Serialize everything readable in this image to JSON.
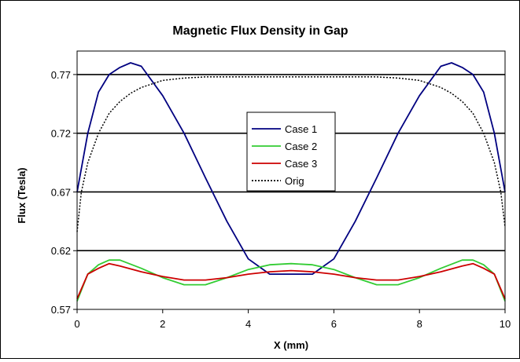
{
  "chart_data": {
    "type": "line",
    "title": "Magnetic Flux Density in Gap",
    "xlabel": "X (mm)",
    "ylabel": "Flux (Tesla)",
    "xlim": [
      0,
      10
    ],
    "ylim": [
      0.57,
      0.79
    ],
    "xticks": [
      0,
      2,
      4,
      6,
      8,
      10
    ],
    "yticks": [
      0.57,
      0.62,
      0.67,
      0.72,
      0.77
    ],
    "ytick_labels": [
      "0.57",
      "0.62",
      "0.67",
      "0.72",
      "0.77"
    ],
    "grid": "horizontal",
    "legend_position": "center",
    "series": [
      {
        "name": "Case 1",
        "color": "#000080",
        "dash": "solid",
        "x": [
          0,
          0.25,
          0.5,
          0.75,
          1.0,
          1.25,
          1.5,
          2.0,
          2.5,
          3.0,
          3.5,
          4.0,
          4.5,
          5.0,
          5.5,
          6.0,
          6.5,
          7.0,
          7.5,
          8.0,
          8.5,
          8.75,
          9.0,
          9.25,
          9.5,
          9.75,
          10
        ],
        "y": [
          0.67,
          0.72,
          0.755,
          0.77,
          0.776,
          0.78,
          0.777,
          0.752,
          0.72,
          0.682,
          0.645,
          0.613,
          0.6,
          0.6,
          0.6,
          0.613,
          0.645,
          0.682,
          0.72,
          0.752,
          0.777,
          0.78,
          0.776,
          0.77,
          0.755,
          0.72,
          0.67
        ]
      },
      {
        "name": "Case 2",
        "color": "#33cc33",
        "dash": "solid",
        "x": [
          0,
          0.25,
          0.5,
          0.75,
          1.0,
          1.5,
          2.0,
          2.5,
          3.0,
          3.5,
          4.0,
          4.5,
          5.0,
          5.5,
          6.0,
          6.5,
          7.0,
          7.5,
          8.0,
          8.5,
          9.0,
          9.25,
          9.5,
          9.75,
          10
        ],
        "y": [
          0.577,
          0.6,
          0.608,
          0.612,
          0.612,
          0.605,
          0.597,
          0.591,
          0.591,
          0.597,
          0.604,
          0.608,
          0.609,
          0.608,
          0.604,
          0.597,
          0.591,
          0.591,
          0.597,
          0.605,
          0.612,
          0.612,
          0.608,
          0.6,
          0.577
        ]
      },
      {
        "name": "Case 3",
        "color": "#cc0000",
        "dash": "solid",
        "x": [
          0,
          0.25,
          0.5,
          0.75,
          1.0,
          1.5,
          2.0,
          2.5,
          3.0,
          3.5,
          4.0,
          4.5,
          5.0,
          5.5,
          6.0,
          6.5,
          7.0,
          7.5,
          8.0,
          8.5,
          9.0,
          9.25,
          9.5,
          9.75,
          10
        ],
        "y": [
          0.579,
          0.6,
          0.605,
          0.609,
          0.607,
          0.602,
          0.598,
          0.595,
          0.595,
          0.597,
          0.6,
          0.602,
          0.603,
          0.602,
          0.6,
          0.597,
          0.595,
          0.595,
          0.598,
          0.602,
          0.607,
          0.609,
          0.605,
          0.6,
          0.579
        ]
      },
      {
        "name": "Orig",
        "color": "#000000",
        "dash": "dotted",
        "x": [
          0,
          0.1,
          0.25,
          0.5,
          0.75,
          1.0,
          1.25,
          1.5,
          2.0,
          2.5,
          3.0,
          4.0,
          5.0,
          6.0,
          7.0,
          7.5,
          8.0,
          8.5,
          8.75,
          9.0,
          9.25,
          9.5,
          9.75,
          9.9,
          10
        ],
        "y": [
          0.636,
          0.67,
          0.695,
          0.72,
          0.737,
          0.747,
          0.754,
          0.759,
          0.765,
          0.767,
          0.768,
          0.768,
          0.768,
          0.768,
          0.768,
          0.767,
          0.765,
          0.759,
          0.754,
          0.747,
          0.737,
          0.72,
          0.695,
          0.67,
          0.64
        ]
      }
    ]
  }
}
